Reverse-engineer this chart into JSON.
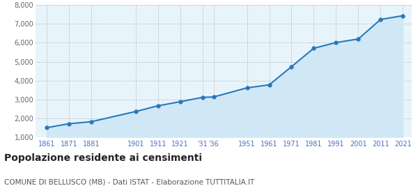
{
  "years": [
    1861,
    1871,
    1881,
    1901,
    1911,
    1921,
    1931,
    1936,
    1951,
    1961,
    1971,
    1981,
    1991,
    2001,
    2011,
    2021
  ],
  "population": [
    1516,
    1726,
    1832,
    2371,
    2671,
    2890,
    3118,
    3139,
    3620,
    3780,
    4740,
    5710,
    6010,
    6200,
    7230,
    7430
  ],
  "line_color": "#2878BE",
  "fill_color": "#D0E8F5",
  "marker_color": "#2878BE",
  "bg_color": "#E8F4FB",
  "grid_color": "#BBBBBB",
  "title": "Popolazione residente ai censimenti",
  "subtitle": "COMUNE DI BELLUSCO (MB) - Dati ISTAT - Elaborazione TUTTITALIA.IT",
  "ylim": [
    1000,
    8000
  ],
  "yticks": [
    1000,
    2000,
    3000,
    4000,
    5000,
    6000,
    7000,
    8000
  ],
  "title_fontsize": 10,
  "subtitle_fontsize": 7.5,
  "tick_label_color": "#4472C4",
  "ylabel_color": "#666666",
  "x_tick_positions": [
    1861,
    1871,
    1881,
    1901,
    1911,
    1921,
    1931,
    1936,
    1951,
    1961,
    1971,
    1981,
    1991,
    2001,
    2011,
    2021
  ],
  "x_tick_labels": [
    "1861",
    "1871",
    "1881",
    "1901",
    "1911",
    "1921",
    "'31",
    "'36",
    "1951",
    "1961",
    "1971",
    "1981",
    "1991",
    "2001",
    "2011",
    "2021"
  ],
  "xlim_left": 1856,
  "xlim_right": 2025
}
